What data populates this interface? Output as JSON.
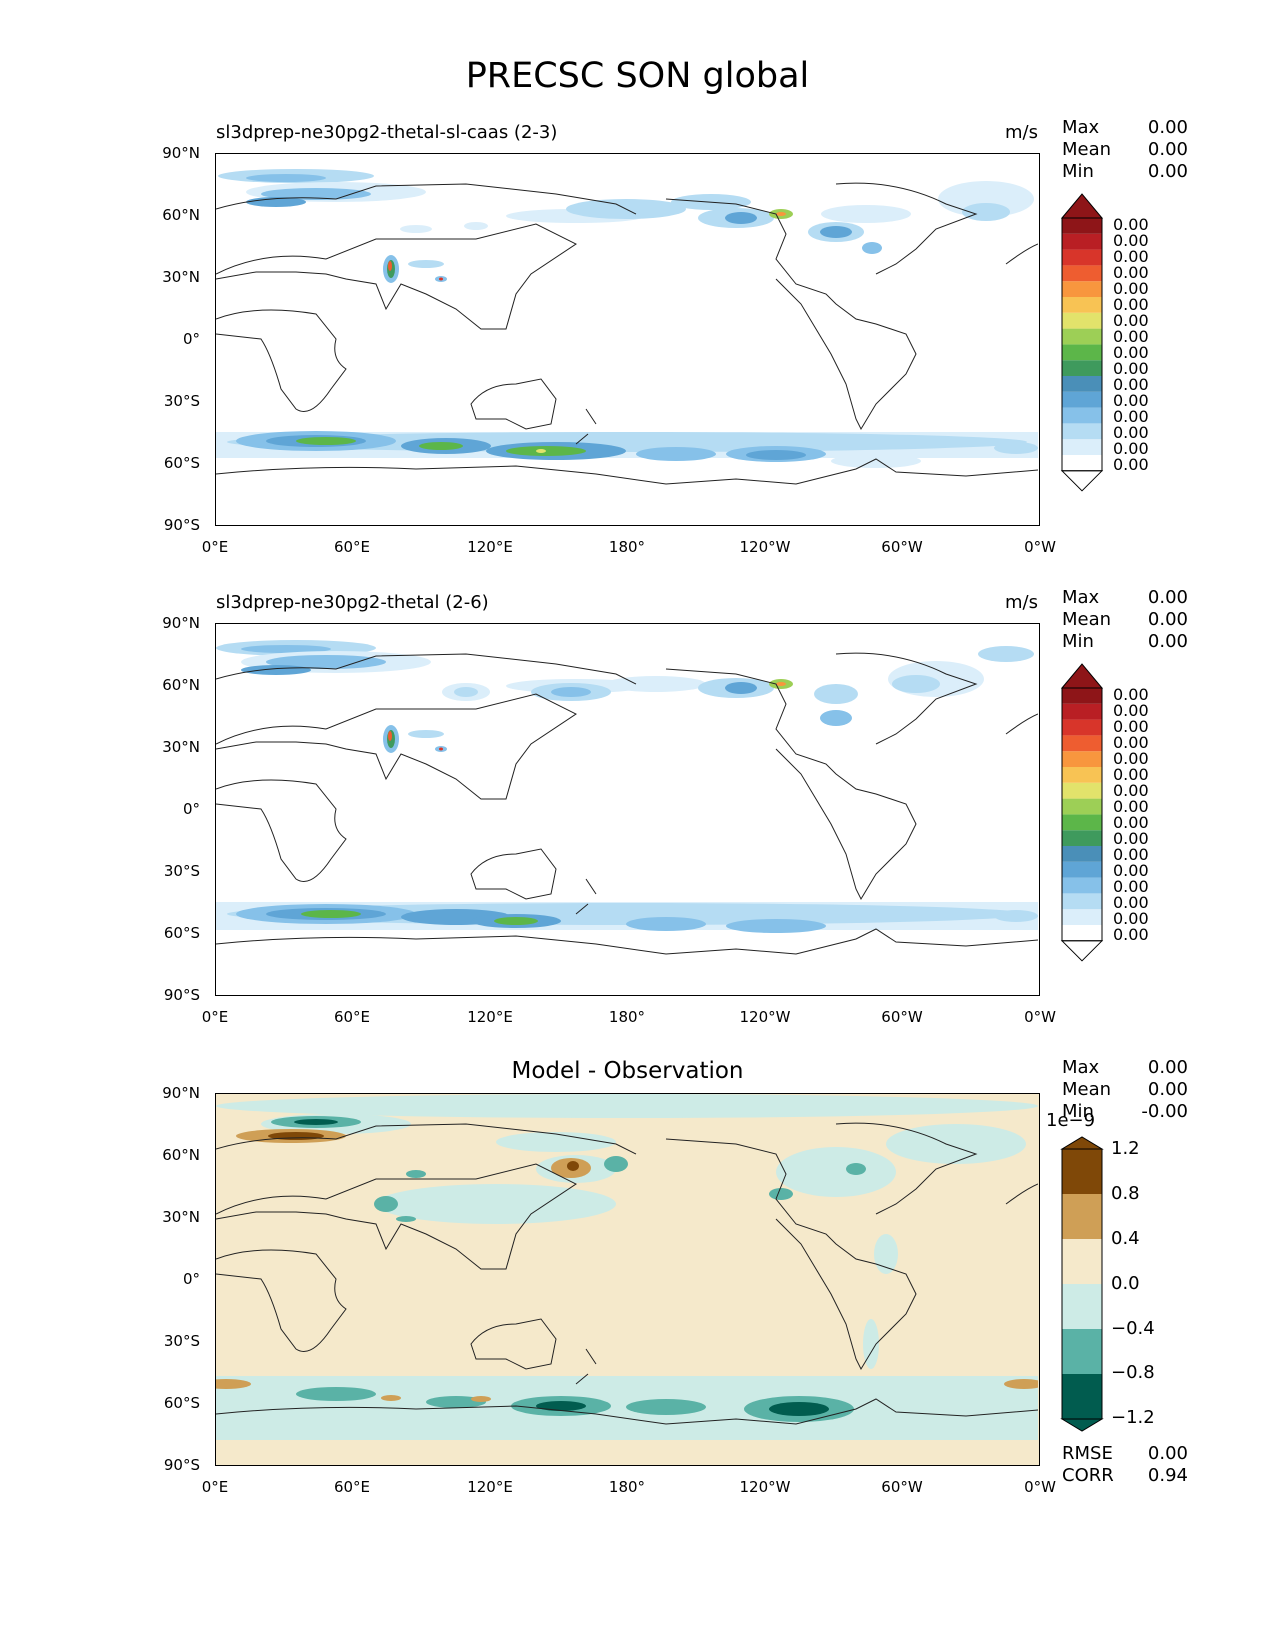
{
  "figure": {
    "title": "PRECSC SON global"
  },
  "lat_ticks": [
    "90°N",
    "60°N",
    "30°N",
    "0°",
    "30°S",
    "60°S",
    "90°S"
  ],
  "lon_ticks": [
    "0°E",
    "60°E",
    "120°E",
    "180°",
    "120°W",
    "60°W",
    "0°W"
  ],
  "panels": [
    {
      "name": "test",
      "title": "sl3dprep-ne30pg2-thetal-sl-caas (2-3)",
      "units": "m/s",
      "stats": [
        {
          "label": "Max",
          "value": "0.00"
        },
        {
          "label": "Mean",
          "value": "0.00"
        },
        {
          "label": "Min",
          "value": "0.00"
        }
      ],
      "colorbar": {
        "labels": [
          "0.00",
          "0.00",
          "0.00",
          "0.00",
          "0.00",
          "0.00",
          "0.00",
          "0.00",
          "0.00",
          "0.00",
          "0.00",
          "0.00",
          "0.00",
          "0.00",
          "0.00",
          "0.00"
        ],
        "colors": [
          "#ffffff",
          "#dbeefa",
          "#b5dcf3",
          "#86c1e9",
          "#5fa5d6",
          "#4a8fb8",
          "#3f9a5d",
          "#5cb649",
          "#9dcf56",
          "#e2e36b",
          "#f8c354",
          "#f8963e",
          "#ee5d30",
          "#d8352a",
          "#b91f24",
          "#8e1518"
        ]
      }
    },
    {
      "name": "reference",
      "title": "sl3dprep-ne30pg2-thetal (2-6)",
      "units": "m/s",
      "stats": [
        {
          "label": "Max",
          "value": "0.00"
        },
        {
          "label": "Mean",
          "value": "0.00"
        },
        {
          "label": "Min",
          "value": "0.00"
        }
      ],
      "colorbar": {
        "labels": [
          "0.00",
          "0.00",
          "0.00",
          "0.00",
          "0.00",
          "0.00",
          "0.00",
          "0.00",
          "0.00",
          "0.00",
          "0.00",
          "0.00",
          "0.00",
          "0.00",
          "0.00",
          "0.00"
        ],
        "colors": [
          "#ffffff",
          "#dbeefa",
          "#b5dcf3",
          "#86c1e9",
          "#5fa5d6",
          "#4a8fb8",
          "#3f9a5d",
          "#5cb649",
          "#9dcf56",
          "#e2e36b",
          "#f8c354",
          "#f8963e",
          "#ee5d30",
          "#d8352a",
          "#b91f24",
          "#8e1518"
        ]
      }
    },
    {
      "name": "difference",
      "title": "Model - Observation",
      "stats": [
        {
          "label": "Max",
          "value": "0.00"
        },
        {
          "label": "Mean",
          "value": "0.00"
        },
        {
          "label": "Min",
          "value": "-0.00"
        }
      ],
      "colorbar": {
        "exponent": "1e−9",
        "labels": [
          "1.2",
          "0.8",
          "0.4",
          "0.0",
          "−0.4",
          "−0.8",
          "−1.2"
        ],
        "colors": [
          "#015c4f",
          "#5ab2a6",
          "#cdebe6",
          "#f5e9cb",
          "#cf9f56",
          "#7f4808"
        ]
      },
      "metrics": [
        {
          "label": "RMSE",
          "value": "0.00"
        },
        {
          "label": "CORR",
          "value": "0.94"
        }
      ]
    }
  ]
}
